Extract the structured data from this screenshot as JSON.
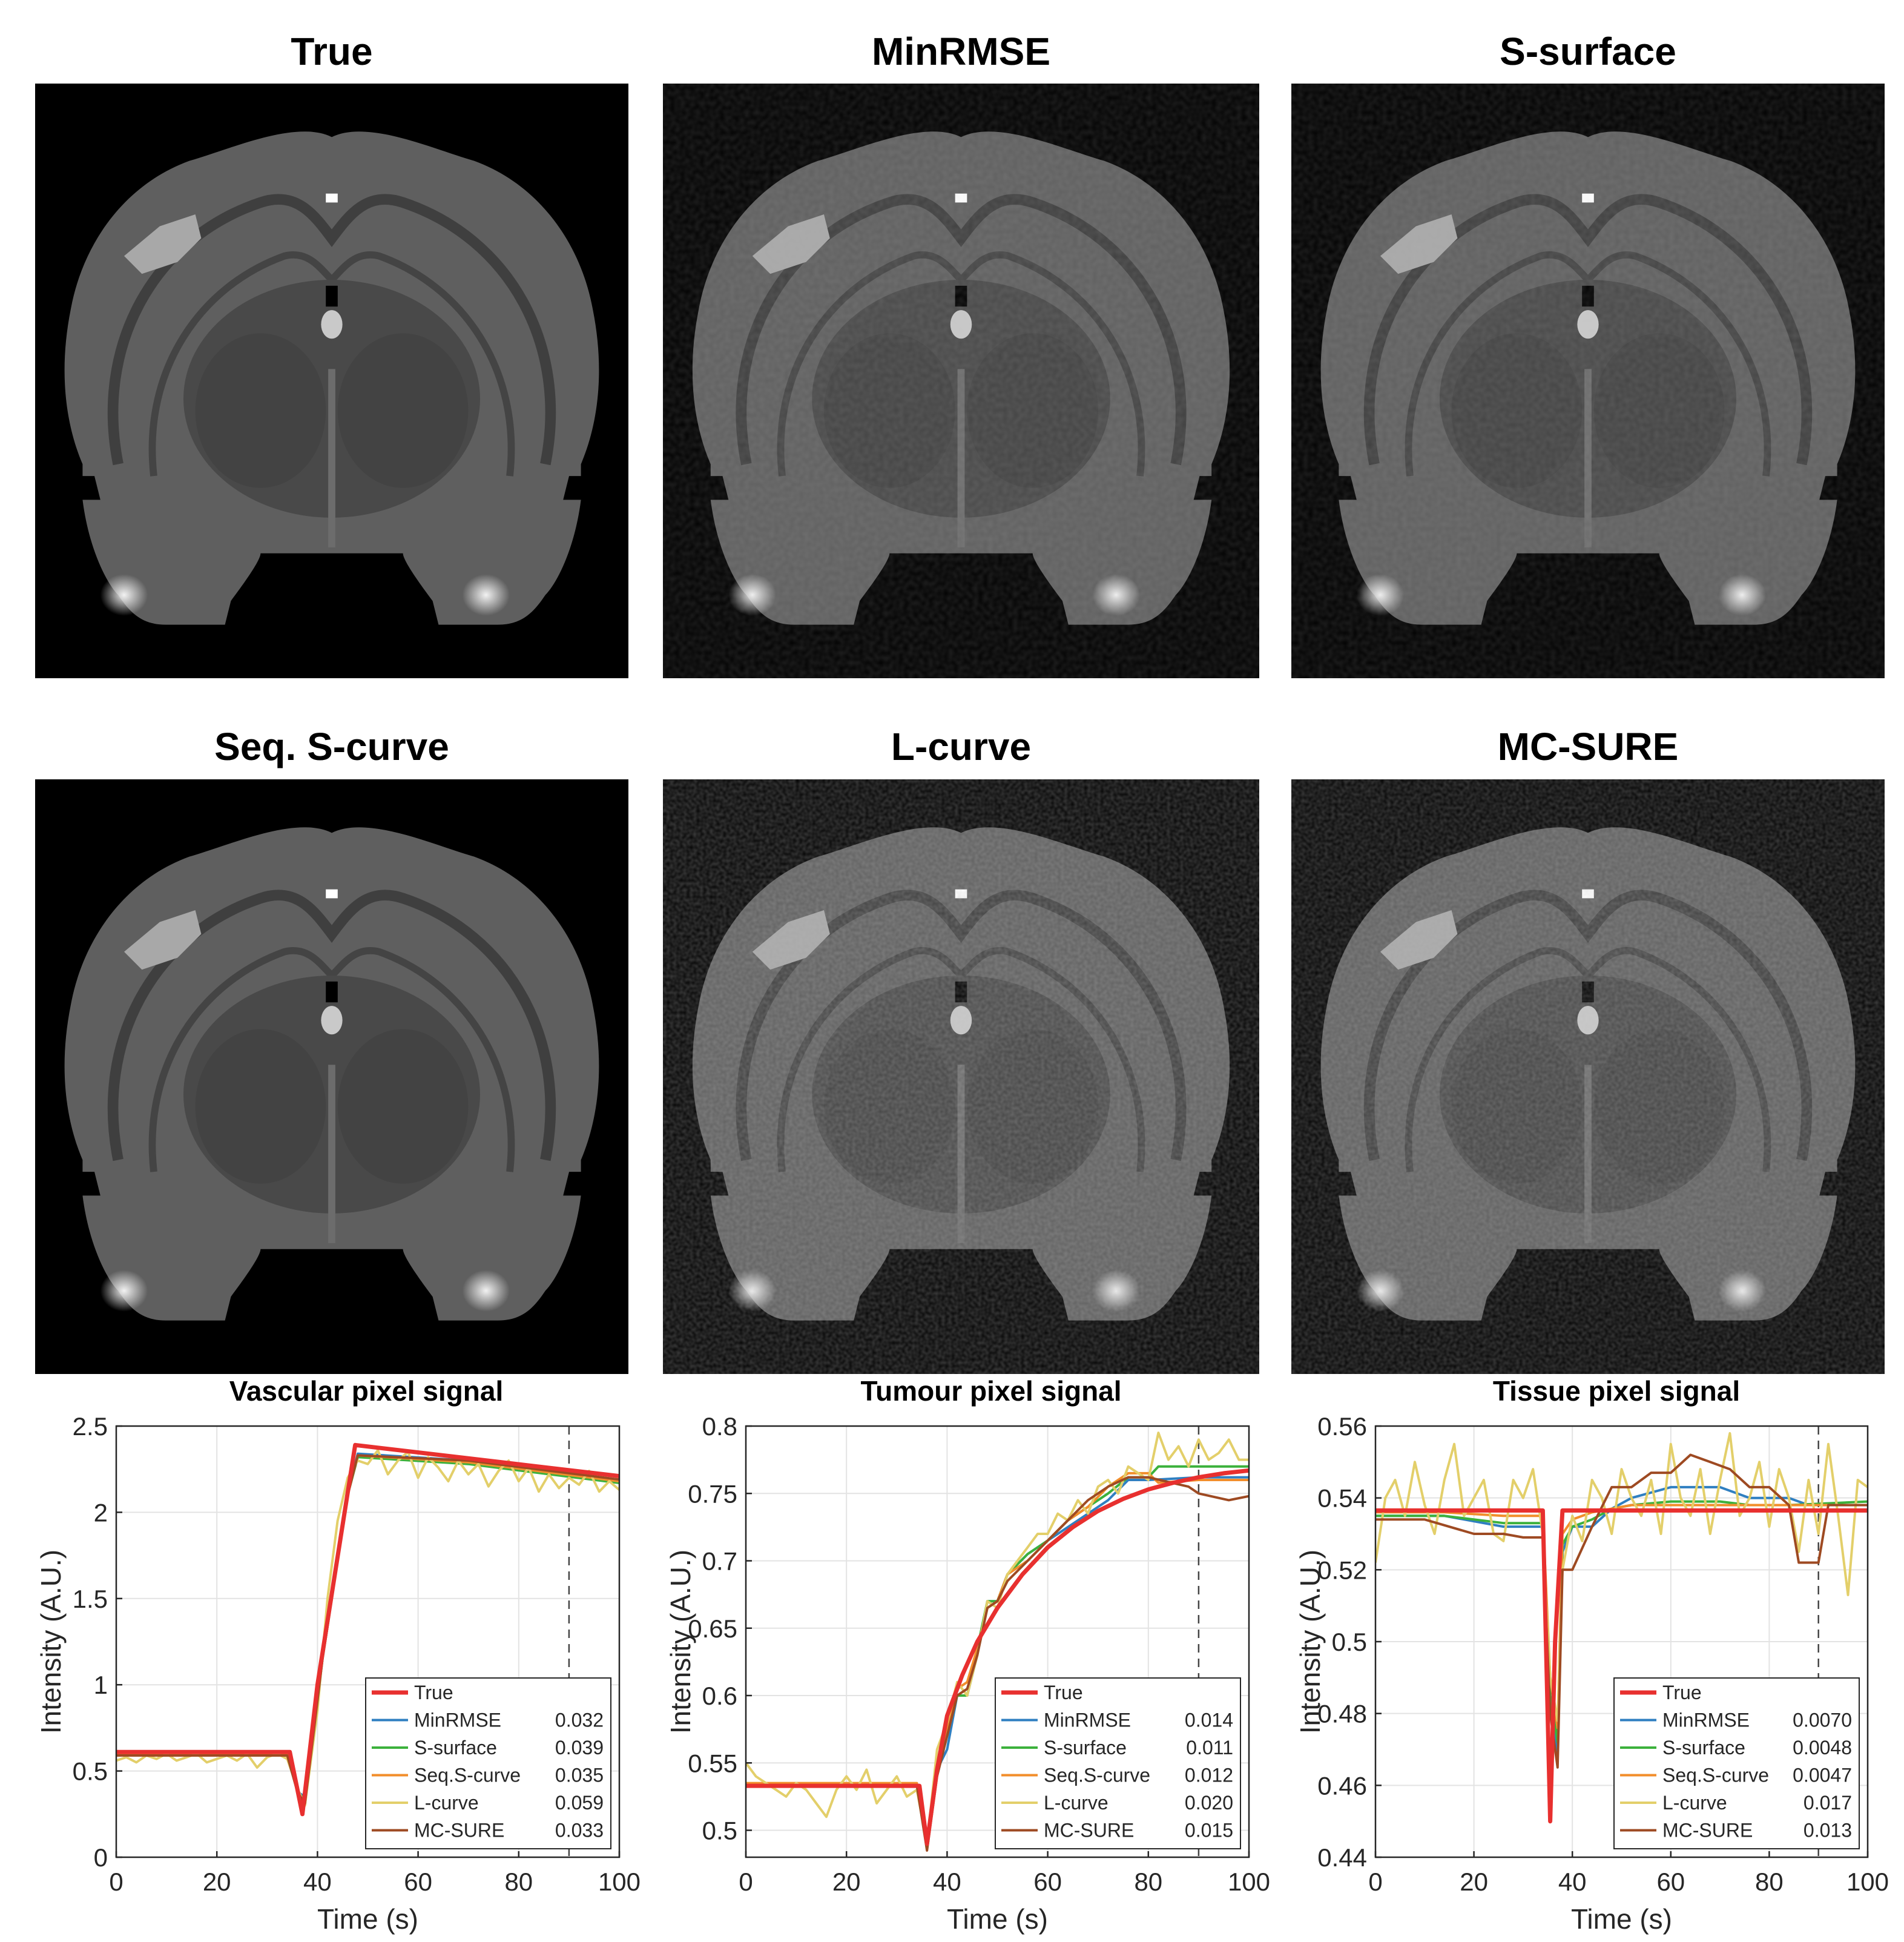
{
  "panels": [
    {
      "title": "True"
    },
    {
      "title": "MinRMSE"
    },
    {
      "title": "S-surface"
    },
    {
      "title": "Seq. S-curve"
    },
    {
      "title": "L-curve"
    },
    {
      "title": "MC-SURE"
    }
  ],
  "colors": {
    "True": "#e8302f",
    "MinRMSE": "#2f7fc1",
    "S-surface": "#3cb13c",
    "Seq.S-curve": "#f28e2b",
    "L-curve": "#e3cf6a",
    "MC-SURE": "#9e4a22"
  },
  "chart_data": [
    {
      "type": "line",
      "title": "Vascular pixel signal",
      "xlabel": "Time (s)",
      "ylabel": "Intensity (A.U.)",
      "xlim": [
        0,
        100
      ],
      "ylim": [
        0,
        2.5
      ],
      "xticks": [
        0,
        20,
        40,
        60,
        80,
        100
      ],
      "yticks": [
        0,
        0.5,
        1,
        1.5,
        2,
        2.5
      ],
      "ytick_labels": [
        "0",
        "0.5",
        "1",
        "1.5",
        "2",
        "2.5"
      ],
      "grid": true,
      "vline_x": 90,
      "legend_position": "bottom-right",
      "series": [
        {
          "name": "True",
          "value": "",
          "x": [
            0,
            34.5,
            37,
            40,
            47.5,
            100
          ],
          "y": [
            0.61,
            0.61,
            0.25,
            1.0,
            2.39,
            2.21
          ]
        },
        {
          "name": "MinRMSE",
          "value": "0.032",
          "x": [
            0,
            34,
            36,
            37.5,
            41,
            46,
            48,
            70,
            100
          ],
          "y": [
            0.6,
            0.6,
            0.38,
            0.35,
            1.15,
            2.1,
            2.34,
            2.3,
            2.18
          ]
        },
        {
          "name": "S-surface",
          "value": "0.039",
          "x": [
            0,
            34,
            36,
            37.5,
            41,
            46,
            48,
            70,
            100
          ],
          "y": [
            0.6,
            0.6,
            0.38,
            0.33,
            1.15,
            2.1,
            2.32,
            2.28,
            2.17
          ]
        },
        {
          "name": "Seq.S-curve",
          "value": "0.035",
          "x": [
            0,
            34,
            36,
            37.5,
            41,
            46,
            48,
            70,
            100
          ],
          "y": [
            0.6,
            0.6,
            0.38,
            0.3,
            1.15,
            2.1,
            2.33,
            2.29,
            2.18
          ]
        },
        {
          "name": "L-curve",
          "value": "0.059",
          "x": [
            0,
            2,
            4,
            6,
            8,
            10,
            12,
            14,
            16,
            18,
            20,
            22,
            24,
            26,
            28,
            30,
            32,
            34,
            36,
            37.5,
            40,
            42,
            44,
            46,
            48,
            50,
            52,
            54,
            56,
            58,
            60,
            62,
            64,
            66,
            68,
            70,
            72,
            74,
            76,
            78,
            80,
            82,
            84,
            86,
            88,
            90,
            92,
            94,
            96,
            98,
            100
          ],
          "y": [
            0.56,
            0.58,
            0.55,
            0.59,
            0.57,
            0.6,
            0.56,
            0.58,
            0.6,
            0.55,
            0.57,
            0.59,
            0.56,
            0.6,
            0.52,
            0.58,
            0.6,
            0.57,
            0.4,
            0.3,
            0.85,
            1.5,
            1.95,
            2.2,
            2.3,
            2.28,
            2.36,
            2.22,
            2.3,
            2.35,
            2.2,
            2.32,
            2.26,
            2.18,
            2.3,
            2.22,
            2.28,
            2.15,
            2.24,
            2.3,
            2.18,
            2.26,
            2.12,
            2.22,
            2.14,
            2.2,
            2.16,
            2.24,
            2.12,
            2.18,
            2.13
          ]
        },
        {
          "name": "MC-SURE",
          "value": "0.033",
          "x": [
            0,
            34,
            36,
            37.5,
            41,
            46,
            48,
            70,
            100
          ],
          "y": [
            0.59,
            0.59,
            0.38,
            0.31,
            1.15,
            2.1,
            2.33,
            2.3,
            2.19
          ]
        }
      ]
    },
    {
      "type": "line",
      "title": "Tumour pixel signal",
      "xlabel": "Time (s)",
      "ylabel": "Intensity (A.U.)",
      "xlim": [
        0,
        100
      ],
      "ylim": [
        0.48,
        0.8
      ],
      "xticks": [
        0,
        20,
        40,
        60,
        80,
        100
      ],
      "yticks": [
        0.5,
        0.55,
        0.6,
        0.65,
        0.7,
        0.75,
        0.8
      ],
      "ytick_labels": [
        "0.5",
        "0.55",
        "0.6",
        "0.65",
        "0.7",
        "0.75",
        "0.8"
      ],
      "grid": true,
      "vline_x": 90,
      "legend_position": "bottom-right",
      "series": [
        {
          "name": "True",
          "value": "",
          "x": [
            0,
            34.5,
            36,
            38,
            40,
            43,
            46,
            50,
            55,
            60,
            65,
            70,
            75,
            80,
            85,
            90,
            95,
            100
          ],
          "y": [
            0.533,
            0.533,
            0.49,
            0.545,
            0.585,
            0.615,
            0.64,
            0.665,
            0.69,
            0.71,
            0.725,
            0.737,
            0.746,
            0.753,
            0.758,
            0.762,
            0.765,
            0.767
          ]
        },
        {
          "name": "MinRMSE",
          "value": "0.014",
          "x": [
            0,
            34,
            36,
            38,
            40,
            42,
            44,
            46,
            48,
            50,
            52,
            56,
            60,
            64,
            68,
            72,
            76,
            80,
            90,
            100
          ],
          "y": [
            0.534,
            0.534,
            0.49,
            0.545,
            0.56,
            0.6,
            0.6,
            0.63,
            0.67,
            0.67,
            0.69,
            0.705,
            0.715,
            0.725,
            0.735,
            0.745,
            0.76,
            0.76,
            0.762,
            0.762
          ]
        },
        {
          "name": "S-surface",
          "value": "0.011",
          "x": [
            0,
            34,
            36,
            38,
            40,
            42,
            44,
            46,
            48,
            50,
            52,
            56,
            60,
            64,
            68,
            72,
            76,
            80,
            82,
            90,
            100
          ],
          "y": [
            0.534,
            0.534,
            0.49,
            0.545,
            0.57,
            0.6,
            0.6,
            0.635,
            0.67,
            0.67,
            0.69,
            0.705,
            0.715,
            0.73,
            0.74,
            0.75,
            0.762,
            0.762,
            0.77,
            0.77,
            0.77
          ]
        },
        {
          "name": "Seq.S-curve",
          "value": "0.012",
          "x": [
            0,
            34,
            36,
            38,
            40,
            42,
            44,
            46,
            48,
            50,
            52,
            56,
            60,
            64,
            68,
            72,
            76,
            80,
            82,
            90,
            100
          ],
          "y": [
            0.535,
            0.535,
            0.49,
            0.55,
            0.575,
            0.605,
            0.61,
            0.635,
            0.665,
            0.67,
            0.69,
            0.7,
            0.715,
            0.73,
            0.74,
            0.755,
            0.765,
            0.765,
            0.758,
            0.76,
            0.76
          ]
        },
        {
          "name": "L-curve",
          "value": "0.020",
          "x": [
            0,
            2,
            4,
            6,
            8,
            10,
            12,
            14,
            16,
            18,
            20,
            22,
            24,
            26,
            28,
            30,
            32,
            34,
            36,
            38,
            40,
            42,
            44,
            46,
            48,
            50,
            52,
            54,
            56,
            58,
            60,
            62,
            64,
            66,
            68,
            70,
            72,
            74,
            76,
            78,
            80,
            82,
            84,
            86,
            88,
            90,
            92,
            94,
            96,
            98,
            100
          ],
          "y": [
            0.55,
            0.54,
            0.535,
            0.53,
            0.525,
            0.535,
            0.53,
            0.52,
            0.51,
            0.53,
            0.54,
            0.53,
            0.545,
            0.52,
            0.53,
            0.54,
            0.525,
            0.53,
            0.49,
            0.56,
            0.58,
            0.61,
            0.6,
            0.63,
            0.67,
            0.665,
            0.69,
            0.7,
            0.71,
            0.72,
            0.72,
            0.735,
            0.73,
            0.745,
            0.735,
            0.755,
            0.76,
            0.75,
            0.77,
            0.765,
            0.76,
            0.795,
            0.775,
            0.785,
            0.77,
            0.79,
            0.775,
            0.78,
            0.79,
            0.775,
            0.775
          ]
        },
        {
          "name": "MC-SURE",
          "value": "0.015",
          "x": [
            0,
            34,
            36,
            38,
            40,
            42,
            44,
            46,
            48,
            50,
            52,
            56,
            60,
            64,
            68,
            72,
            76,
            80,
            88,
            90,
            96,
            100
          ],
          "y": [
            0.533,
            0.533,
            0.485,
            0.54,
            0.57,
            0.6,
            0.605,
            0.63,
            0.665,
            0.67,
            0.685,
            0.7,
            0.715,
            0.73,
            0.745,
            0.755,
            0.762,
            0.762,
            0.755,
            0.75,
            0.745,
            0.748
          ]
        }
      ]
    },
    {
      "type": "line",
      "title": "Tissue pixel signal",
      "xlabel": "Time (s)",
      "ylabel": "Intensity (A.U.)",
      "xlim": [
        0,
        100
      ],
      "ylim": [
        0.44,
        0.56
      ],
      "xticks": [
        0,
        20,
        40,
        60,
        80,
        100
      ],
      "yticks": [
        0.44,
        0.46,
        0.48,
        0.5,
        0.52,
        0.54,
        0.56
      ],
      "ytick_labels": [
        "0.44",
        "0.46",
        "0.48",
        "0.5",
        "0.52",
        "0.54",
        "0.56"
      ],
      "grid": true,
      "vline_x": 90,
      "legend_position": "bottom-right",
      "series": [
        {
          "name": "True",
          "value": "",
          "x": [
            0,
            34,
            35.5,
            36.5,
            38,
            100
          ],
          "y": [
            0.5365,
            0.5365,
            0.45,
            0.5,
            0.5365,
            0.5365
          ]
        },
        {
          "name": "MinRMSE",
          "value": "0.0070",
          "x": [
            0,
            14,
            26,
            34,
            35.5,
            37,
            38,
            40,
            44,
            48,
            52,
            60,
            70,
            76,
            84,
            88,
            92,
            100
          ],
          "y": [
            0.535,
            0.535,
            0.532,
            0.532,
            0.485,
            0.468,
            0.525,
            0.532,
            0.532,
            0.537,
            0.54,
            0.543,
            0.543,
            0.54,
            0.54,
            0.538,
            0.538,
            0.538
          ]
        },
        {
          "name": "S-surface",
          "value": "0.0048",
          "x": [
            0,
            14,
            26,
            34,
            35.5,
            37,
            38,
            40,
            44,
            48,
            52,
            60,
            70,
            76,
            84,
            100
          ],
          "y": [
            0.535,
            0.535,
            0.533,
            0.533,
            0.485,
            0.472,
            0.527,
            0.532,
            0.534,
            0.537,
            0.538,
            0.539,
            0.539,
            0.538,
            0.538,
            0.539
          ]
        },
        {
          "name": "Seq.S-curve",
          "value": "0.0047",
          "x": [
            0,
            14,
            26,
            34,
            35.5,
            37,
            38,
            40,
            44,
            48,
            52,
            60,
            70,
            76,
            84,
            100
          ],
          "y": [
            0.536,
            0.536,
            0.535,
            0.535,
            0.49,
            0.476,
            0.53,
            0.534,
            0.536,
            0.537,
            0.538,
            0.538,
            0.538,
            0.538,
            0.538,
            0.538
          ]
        },
        {
          "name": "L-curve",
          "value": "0.017",
          "x": [
            0,
            2,
            4,
            6,
            8,
            10,
            12,
            14,
            16,
            18,
            20,
            22,
            24,
            26,
            28,
            30,
            32,
            34,
            35.5,
            37,
            38,
            40,
            42,
            44,
            46,
            48,
            50,
            52,
            54,
            56,
            58,
            60,
            62,
            64,
            66,
            68,
            70,
            72,
            74,
            76,
            78,
            80,
            82,
            84,
            86,
            88,
            90,
            92,
            94,
            96,
            98,
            100
          ],
          "y": [
            0.522,
            0.54,
            0.545,
            0.535,
            0.55,
            0.538,
            0.53,
            0.545,
            0.555,
            0.535,
            0.54,
            0.545,
            0.53,
            0.528,
            0.545,
            0.54,
            0.548,
            0.53,
            0.49,
            0.478,
            0.52,
            0.535,
            0.528,
            0.545,
            0.54,
            0.53,
            0.548,
            0.54,
            0.535,
            0.545,
            0.53,
            0.555,
            0.54,
            0.535,
            0.548,
            0.53,
            0.545,
            0.558,
            0.535,
            0.54,
            0.55,
            0.532,
            0.548,
            0.54,
            0.525,
            0.545,
            0.53,
            0.555,
            0.535,
            0.513,
            0.545,
            0.543
          ]
        },
        {
          "name": "MC-SURE",
          "value": "0.013",
          "x": [
            0,
            10,
            20,
            26,
            30,
            34,
            35.5,
            37,
            38,
            40,
            44,
            48,
            52,
            56,
            60,
            64,
            68,
            72,
            76,
            80,
            84,
            86,
            90,
            92,
            100
          ],
          "y": [
            0.534,
            0.534,
            0.53,
            0.53,
            0.529,
            0.529,
            0.48,
            0.465,
            0.52,
            0.52,
            0.532,
            0.543,
            0.543,
            0.547,
            0.547,
            0.552,
            0.55,
            0.548,
            0.543,
            0.543,
            0.538,
            0.522,
            0.522,
            0.538,
            0.538
          ]
        }
      ]
    }
  ]
}
